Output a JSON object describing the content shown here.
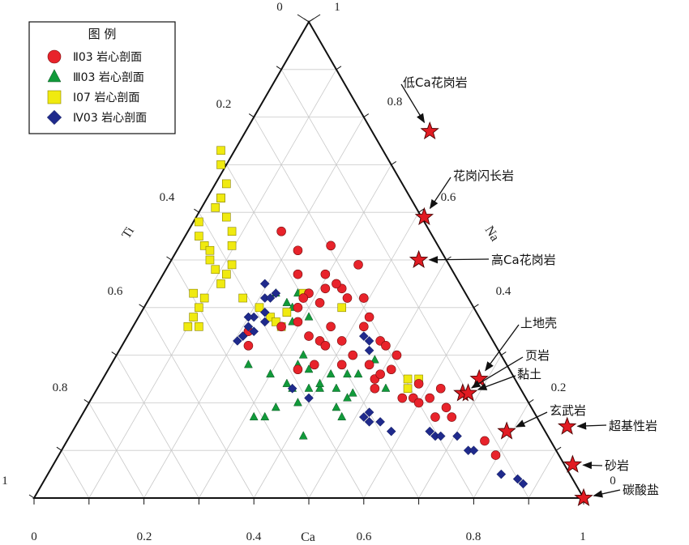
{
  "chart_data": {
    "type": "ternary-scatter",
    "axes": {
      "bottom": {
        "label": "Ca",
        "ticks": [
          "0",
          "0.2",
          "0.4",
          "0.6",
          "0.8",
          "1"
        ]
      },
      "left": {
        "label": "Ti",
        "ticks": [
          "0.2",
          "0.4",
          "0.6",
          "0.8"
        ],
        "end_labels": [
          "0",
          "1"
        ]
      },
      "right": {
        "label": "Na",
        "ticks": [
          "0.8",
          "0.6",
          "0.4",
          "0.2"
        ],
        "end_labels": [
          "1",
          "0"
        ]
      }
    },
    "grid": true,
    "legend": {
      "title": "图 例",
      "placement": "top-left",
      "entries": [
        {
          "key": "II03",
          "label": "Ⅱ03 岩心剖面",
          "marker": "circle",
          "color": "#e8232b"
        },
        {
          "key": "III03",
          "label": "Ⅲ03 岩心剖面",
          "marker": "triangle",
          "color": "#119a3a"
        },
        {
          "key": "I07",
          "label": "Ⅰ07 岩心剖面",
          "marker": "square",
          "color": "#f0ea10"
        },
        {
          "key": "IV03",
          "label": "Ⅳ03 岩心剖面",
          "marker": "diamond",
          "color": "#1f2a8c"
        }
      ]
    },
    "series": [
      {
        "key": "II03",
        "points": [
          [
            0.58,
            0.3
          ],
          [
            0.61,
            0.28
          ],
          [
            0.52,
            0.41
          ],
          [
            0.56,
            0.44
          ],
          [
            0.48,
            0.47
          ],
          [
            0.53,
            0.47
          ],
          [
            0.54,
            0.53
          ],
          [
            0.48,
            0.52
          ],
          [
            0.45,
            0.56
          ],
          [
            0.57,
            0.42
          ],
          [
            0.6,
            0.42
          ],
          [
            0.61,
            0.38
          ],
          [
            0.7,
            0.24
          ],
          [
            0.75,
            0.19
          ],
          [
            0.73,
            0.17
          ],
          [
            0.76,
            0.17
          ],
          [
            0.67,
            0.21
          ],
          [
            0.69,
            0.21
          ],
          [
            0.52,
            0.33
          ],
          [
            0.53,
            0.32
          ],
          [
            0.56,
            0.28
          ],
          [
            0.51,
            0.28
          ],
          [
            0.56,
            0.33
          ],
          [
            0.5,
            0.34
          ],
          [
            0.48,
            0.37
          ],
          [
            0.48,
            0.27
          ],
          [
            0.63,
            0.33
          ],
          [
            0.64,
            0.32
          ],
          [
            0.65,
            0.27
          ],
          [
            0.62,
            0.23
          ],
          [
            0.66,
            0.3
          ],
          [
            0.45,
            0.36
          ],
          [
            0.54,
            0.36
          ],
          [
            0.53,
            0.44
          ],
          [
            0.59,
            0.49
          ],
          [
            0.55,
            0.45
          ],
          [
            0.5,
            0.43
          ],
          [
            0.39,
            0.32
          ],
          [
            0.39,
            0.35
          ],
          [
            0.49,
            0.42
          ],
          [
            0.48,
            0.4
          ],
          [
            0.6,
            0.36
          ],
          [
            0.82,
            0.12
          ],
          [
            0.84,
            0.09
          ],
          [
            0.62,
            0.25
          ],
          [
            0.63,
            0.26
          ],
          [
            0.74,
            0.23
          ],
          [
            0.7,
            0.2
          ],
          [
            0.72,
            0.21
          ]
        ]
      },
      {
        "key": "III03",
        "points": [
          [
            0.46,
            0.41
          ],
          [
            0.48,
            0.43
          ],
          [
            0.44,
            0.43
          ],
          [
            0.47,
            0.37
          ],
          [
            0.5,
            0.38
          ],
          [
            0.47,
            0.4
          ],
          [
            0.56,
            0.17
          ],
          [
            0.59,
            0.26
          ],
          [
            0.62,
            0.29
          ],
          [
            0.58,
            0.22
          ],
          [
            0.49,
            0.13
          ],
          [
            0.48,
            0.2
          ],
          [
            0.5,
            0.23
          ],
          [
            0.52,
            0.23
          ],
          [
            0.46,
            0.24
          ],
          [
            0.4,
            0.17
          ],
          [
            0.48,
            0.28
          ],
          [
            0.55,
            0.23
          ],
          [
            0.5,
            0.27
          ],
          [
            0.47,
            0.23
          ],
          [
            0.49,
            0.3
          ],
          [
            0.54,
            0.26
          ],
          [
            0.42,
            0.17
          ],
          [
            0.44,
            0.19
          ],
          [
            0.64,
            0.23
          ],
          [
            0.55,
            0.19
          ],
          [
            0.57,
            0.21
          ],
          [
            0.52,
            0.24
          ],
          [
            0.43,
            0.26
          ],
          [
            0.57,
            0.26
          ],
          [
            0.39,
            0.28
          ]
        ]
      },
      {
        "key": "I07",
        "points": [
          [
            0.34,
            0.73
          ],
          [
            0.34,
            0.7
          ],
          [
            0.35,
            0.66
          ],
          [
            0.34,
            0.63
          ],
          [
            0.33,
            0.61
          ],
          [
            0.3,
            0.58
          ],
          [
            0.3,
            0.55
          ],
          [
            0.31,
            0.53
          ],
          [
            0.32,
            0.52
          ],
          [
            0.32,
            0.5
          ],
          [
            0.33,
            0.48
          ],
          [
            0.35,
            0.47
          ],
          [
            0.36,
            0.49
          ],
          [
            0.38,
            0.42
          ],
          [
            0.41,
            0.4
          ],
          [
            0.43,
            0.38
          ],
          [
            0.45,
            0.36
          ],
          [
            0.29,
            0.43
          ],
          [
            0.31,
            0.42
          ],
          [
            0.3,
            0.4
          ],
          [
            0.29,
            0.38
          ],
          [
            0.28,
            0.36
          ],
          [
            0.3,
            0.36
          ],
          [
            0.34,
            0.63
          ],
          [
            0.35,
            0.59
          ],
          [
            0.36,
            0.56
          ],
          [
            0.36,
            0.53
          ],
          [
            0.34,
            0.45
          ],
          [
            0.44,
            0.37
          ],
          [
            0.46,
            0.39
          ],
          [
            0.49,
            0.43
          ],
          [
            0.56,
            0.4
          ],
          [
            0.68,
            0.25
          ],
          [
            0.7,
            0.25
          ],
          [
            0.68,
            0.23
          ]
        ]
      },
      {
        "key": "IV03",
        "points": [
          [
            0.4,
            0.38
          ],
          [
            0.39,
            0.36
          ],
          [
            0.38,
            0.34
          ],
          [
            0.4,
            0.35
          ],
          [
            0.42,
            0.39
          ],
          [
            0.42,
            0.42
          ],
          [
            0.42,
            0.45
          ],
          [
            0.38,
            0.34
          ],
          [
            0.6,
            0.34
          ],
          [
            0.61,
            0.33
          ],
          [
            0.61,
            0.31
          ],
          [
            0.47,
            0.23
          ],
          [
            0.5,
            0.21
          ],
          [
            0.61,
            0.18
          ],
          [
            0.61,
            0.16
          ],
          [
            0.63,
            0.16
          ],
          [
            0.65,
            0.14
          ],
          [
            0.72,
            0.14
          ],
          [
            0.73,
            0.13
          ],
          [
            0.74,
            0.13
          ],
          [
            0.77,
            0.13
          ],
          [
            0.79,
            0.1
          ],
          [
            0.8,
            0.1
          ],
          [
            0.85,
            0.05
          ],
          [
            0.88,
            0.04
          ],
          [
            0.89,
            0.03
          ],
          [
            0.6,
            0.17
          ],
          [
            0.42,
            0.37
          ],
          [
            0.39,
            0.38
          ],
          [
            0.44,
            0.43
          ],
          [
            0.37,
            0.33
          ],
          [
            0.43,
            0.42
          ]
        ]
      }
    ],
    "references": [
      {
        "label": "低Ca花岗岩",
        "point": [
          0.72,
          0.77
        ]
      },
      {
        "label": "花岗闪长岩",
        "point": [
          0.71,
          0.59
        ]
      },
      {
        "label": "高Ca花岗岩",
        "point": [
          0.7,
          0.5
        ]
      },
      {
        "label": "上地壳",
        "point": [
          0.81,
          0.25
        ]
      },
      {
        "label": "页岩",
        "point": [
          0.78,
          0.22
        ]
      },
      {
        "label": "黏土",
        "point": [
          0.79,
          0.22
        ]
      },
      {
        "label": "玄武岩",
        "point": [
          0.86,
          0.14
        ]
      },
      {
        "label": "超基性岩",
        "point": [
          0.97,
          0.15
        ]
      },
      {
        "label": "砂岩",
        "point": [
          0.98,
          0.07
        ]
      },
      {
        "label": "碳酸盐",
        "point": [
          1.0,
          0.0
        ]
      }
    ]
  }
}
